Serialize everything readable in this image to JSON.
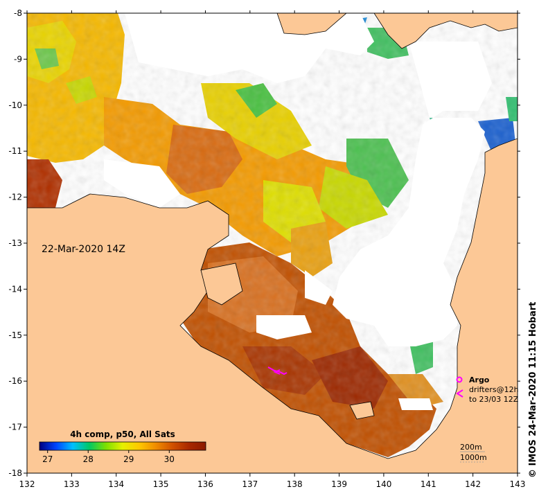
{
  "map": {
    "date_label": "22-Mar-2020 14Z",
    "colorbar_title": "4h comp, p50, All Sats",
    "colorbar_ticks": [
      "27",
      "28",
      "29",
      "30"
    ],
    "colorbar_range": [
      26.8,
      30.9
    ],
    "colorbar_colors": [
      "#00007f",
      "#0044ff",
      "#00bfff",
      "#00c864",
      "#7ee000",
      "#e6f000",
      "#ffc800",
      "#f08c00",
      "#d05000",
      "#a82800",
      "#8b1a00"
    ],
    "lon_ticks": [
      "132",
      "133",
      "134",
      "135",
      "136",
      "137",
      "138",
      "139",
      "140",
      "141",
      "142",
      "143"
    ],
    "lat_ticks": [
      "-8",
      "-9",
      "-10",
      "-11",
      "-12",
      "-13",
      "-14",
      "-15",
      "-16",
      "-17",
      "-18"
    ],
    "lon_range": [
      132,
      143
    ],
    "lat_range": [
      -18,
      -8
    ],
    "land_color": "#fcc896"
  },
  "legend": {
    "argo": "Argo",
    "drifters_line1": "drifters@12h",
    "drifters_line2": "to 23/03 12Z",
    "depth_200": "200m",
    "depth_1000": "1000m"
  },
  "credit": "© IMOS 24-Mar-2020 11:15 Hobart"
}
